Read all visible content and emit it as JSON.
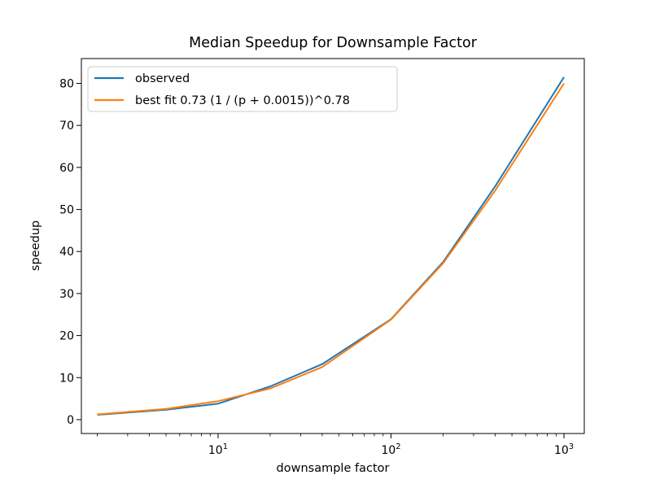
{
  "chart_data": {
    "type": "line",
    "title": "Median Speedup for Downsample Factor",
    "xlabel": "downsample factor",
    "ylabel": "speedup",
    "x_scale": "log10",
    "x": [
      2,
      5,
      10,
      20,
      40,
      100,
      200,
      400,
      1000
    ],
    "series": [
      {
        "name": "observed",
        "color": "#1f77b4",
        "values": [
          1.15,
          2.35,
          3.8,
          7.9,
          13.2,
          23.9,
          37.5,
          55.5,
          81.5
        ]
      },
      {
        "name": "best fit 0.73 (1 / (p + 0.0015))^0.78",
        "color": "#ff7f0e",
        "values": [
          1.25,
          2.55,
          4.4,
          7.4,
          12.5,
          23.8,
          37.2,
          54.5,
          80.0
        ]
      }
    ],
    "xlim": [
      1.62,
      1310
    ],
    "ylim": [
      -3.3,
      85.9
    ],
    "yticks": [
      0,
      10,
      20,
      30,
      40,
      50,
      60,
      70,
      80
    ],
    "xticks": [
      {
        "base": "10",
        "exp": "1",
        "value": 10
      },
      {
        "base": "10",
        "exp": "2",
        "value": 100
      },
      {
        "base": "10",
        "exp": "3",
        "value": 1000
      }
    ],
    "legend_position": "upper left",
    "grid": false,
    "axis_color": "#000000",
    "background": "#ffffff"
  }
}
